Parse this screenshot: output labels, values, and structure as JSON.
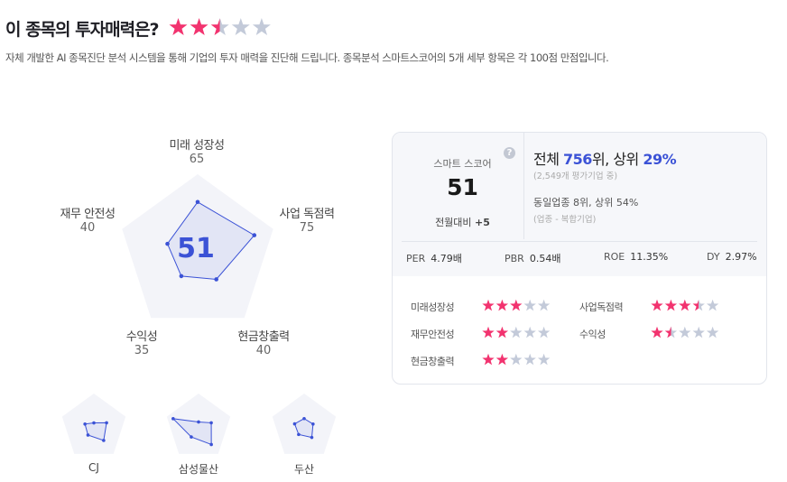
{
  "header": {
    "title": "이 종목의 투자매력은?",
    "rating": 2.5,
    "subtitle": "자체 개발한 AI 종목진단 분석 시스템을 통해 기업의 투자 매력을 진단해 드립니다. 종목분석 스마트스코어의 5개 세부 항목은 각 100점 만점입니다."
  },
  "radar": {
    "score": "51",
    "axes": [
      {
        "label": "미래 성장성",
        "value": 65
      },
      {
        "label": "사업 독점력",
        "value": 75
      },
      {
        "label": "현금창출력",
        "value": 40
      },
      {
        "label": "수익성",
        "value": 35
      },
      {
        "label": "재무 안전성",
        "value": 40
      }
    ],
    "max": 100
  },
  "peers": [
    {
      "name": "CJ",
      "values": [
        12,
        40,
        50,
        30,
        28
      ]
    },
    {
      "name": "삼성물산",
      "values": [
        15,
        40,
        65,
        37,
        80
      ]
    },
    {
      "name": "두산",
      "values": [
        25,
        28,
        39,
        28,
        30
      ]
    }
  ],
  "card": {
    "score_label": "스마트 스코어",
    "score": "51",
    "help_icon": "question-circle-icon",
    "mom_label": "전월대비",
    "mom_value": "+5",
    "overall_prefix": "전체 ",
    "overall_rank": "756",
    "overall_mid": "위, 상위 ",
    "overall_pct": "29%",
    "overall_note": "(2,549개 평가기업 중)",
    "industry": "동일업종 8위, 상위 54%",
    "industry_note": "(업종 - 복합기업)",
    "metrics": [
      {
        "label": "PER",
        "value": "4.79배"
      },
      {
        "label": "PBR",
        "value": "0.54배"
      },
      {
        "label": "ROE",
        "value": "11.35%"
      },
      {
        "label": "DY",
        "value": "2.97%"
      }
    ],
    "categories": [
      {
        "label": "미래성장성",
        "rating": 3
      },
      {
        "label": "사업독점력",
        "rating": 3.5
      },
      {
        "label": "재무안전성",
        "rating": 2
      },
      {
        "label": "수익성",
        "rating": 1.5
      },
      {
        "label": "현금창출력",
        "rating": 2
      }
    ]
  },
  "colors": {
    "star_on": "#f2336f",
    "star_off": "#c3cad9",
    "accent": "#3b52d6",
    "pentagon": "#f3f4f9"
  }
}
